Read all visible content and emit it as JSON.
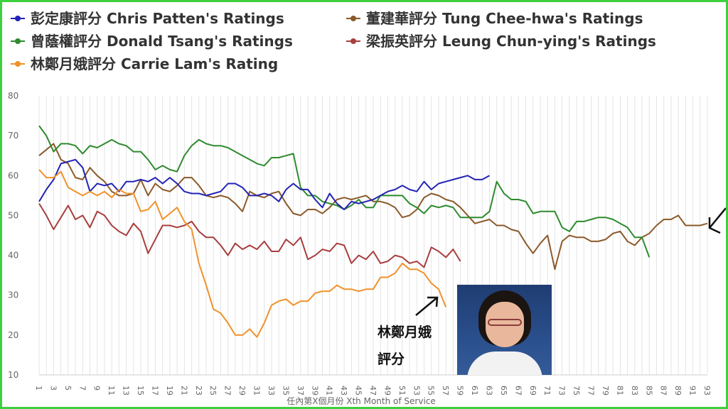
{
  "chart_data": {
    "type": "line",
    "title": "",
    "xlabel": "任內第X個月份 Xth Month of Service",
    "ylabel": "",
    "ylim": [
      10,
      80
    ],
    "yticks": [
      10,
      20,
      30,
      40,
      50,
      60,
      70,
      80
    ],
    "xlim": [
      1,
      93
    ],
    "xticks": [
      "1",
      "3",
      "5",
      "7",
      "9",
      "11",
      "13",
      "15",
      "17",
      "19",
      "21",
      "23",
      "25",
      "27",
      "29",
      "31",
      "33",
      "35",
      "37",
      "39",
      "41",
      "43",
      "45",
      "47",
      "49",
      "51",
      "53",
      "55",
      "57",
      "59",
      "61",
      "63",
      "65",
      "67",
      "69",
      "71",
      "73",
      "75",
      "77",
      "79",
      "81",
      "83",
      "85",
      "87",
      "89",
      "91",
      "93"
    ],
    "grid": "vertical",
    "legend": "top",
    "series": [
      {
        "name": "彭定康評分 Chris Patten's Ratings",
        "color": "#2323b5",
        "x": [
          1,
          2,
          3,
          4,
          5,
          6,
          7,
          8,
          9,
          10,
          11,
          12,
          13,
          14,
          15,
          16,
          17,
          18,
          19,
          20,
          21,
          22,
          23,
          24,
          25,
          26,
          27,
          28,
          29,
          30,
          31,
          32,
          33,
          34,
          35,
          36,
          37,
          38,
          39,
          40,
          41,
          42,
          43,
          44,
          45,
          46,
          47,
          48,
          49,
          50,
          51,
          52,
          53,
          54,
          55,
          56,
          57,
          58,
          59,
          60,
          61,
          62,
          63
        ],
        "values": [
          53.5,
          56.5,
          59,
          63,
          63.5,
          64,
          62,
          56,
          58,
          57.5,
          58,
          56,
          58.5,
          58.5,
          59,
          58.5,
          59.5,
          58,
          59.5,
          58,
          56,
          55.5,
          55.5,
          55,
          55.5,
          56,
          58,
          58,
          57,
          55,
          55,
          55.5,
          55,
          53.5,
          56.5,
          58,
          56.5,
          56.5,
          54,
          52,
          55.5,
          53,
          51.5,
          53.5,
          53,
          53.5,
          54,
          55,
          56,
          56.5,
          57.5,
          56.5,
          56,
          58.5,
          56.5,
          58,
          58.5,
          59,
          59.5,
          60,
          59,
          59,
          60
        ]
      },
      {
        "name": "董建華評分 Tung Chee-hwa's Ratings",
        "color": "#8b5a2b",
        "x": [
          1,
          2,
          3,
          4,
          5,
          6,
          7,
          8,
          9,
          10,
          11,
          12,
          13,
          14,
          15,
          16,
          17,
          18,
          19,
          20,
          21,
          22,
          23,
          24,
          25,
          26,
          27,
          28,
          29,
          30,
          31,
          32,
          33,
          34,
          35,
          36,
          37,
          38,
          39,
          40,
          41,
          42,
          43,
          44,
          45,
          46,
          47,
          48,
          49,
          50,
          51,
          52,
          53,
          54,
          55,
          56,
          57,
          58,
          59,
          60,
          61,
          62,
          63,
          64,
          65,
          66,
          67,
          68,
          69,
          70,
          71,
          72,
          73,
          74,
          75,
          76,
          77,
          78,
          79,
          80,
          81,
          82,
          83,
          84,
          85,
          86,
          87,
          88,
          89,
          90,
          91,
          92,
          93
        ],
        "values": [
          65,
          66.5,
          68,
          64,
          63,
          59.5,
          59,
          62,
          60,
          58.5,
          56,
          55,
          55,
          55.5,
          59,
          55,
          58,
          56.5,
          56,
          57.5,
          59.5,
          59.5,
          57.5,
          55,
          54.5,
          55,
          54.5,
          53,
          51,
          56,
          55,
          54.5,
          55.5,
          56,
          53,
          50.5,
          50,
          51.5,
          51.5,
          50.5,
          52,
          54,
          54.5,
          54,
          54.5,
          55,
          53.5,
          53.5,
          53,
          52,
          49.5,
          50,
          51.5,
          54.5,
          55.5,
          55,
          54,
          53.5,
          52,
          50,
          48,
          48.5,
          49,
          47.5,
          47.5,
          46.5,
          46,
          43,
          40.5,
          43,
          45,
          36.5,
          43.5,
          45,
          44.5,
          44.5,
          43.5,
          43.5,
          44,
          45.5,
          46,
          43.5,
          42.5,
          44.5,
          45.5,
          47.5,
          49,
          49,
          50,
          47.5,
          47.5,
          47.5,
          48
        ]
      },
      {
        "name": "曾蔭權評分 Donald Tsang's Ratings",
        "color": "#2e8b2e",
        "x": [
          1,
          2,
          3,
          4,
          5,
          6,
          7,
          8,
          9,
          10,
          11,
          12,
          13,
          14,
          15,
          16,
          17,
          18,
          19,
          20,
          21,
          22,
          23,
          24,
          25,
          26,
          27,
          28,
          29,
          30,
          31,
          32,
          33,
          34,
          35,
          36,
          37,
          38,
          39,
          40,
          41,
          42,
          43,
          44,
          45,
          46,
          47,
          48,
          49,
          50,
          51,
          52,
          53,
          54,
          55,
          56,
          57,
          58,
          59,
          60,
          61,
          62,
          63,
          64,
          65,
          66,
          67,
          68,
          69,
          70,
          71,
          72,
          73,
          74,
          75,
          76,
          77,
          78,
          79,
          80,
          81,
          82,
          83,
          84,
          85
        ],
        "values": [
          72.5,
          70,
          66,
          68,
          68,
          67.5,
          65.5,
          67.5,
          67,
          68,
          69,
          68,
          67.5,
          66,
          66,
          64,
          61.5,
          62.5,
          61.5,
          61,
          65,
          67.5,
          69,
          68,
          67.5,
          67.5,
          67,
          66,
          65,
          64,
          63,
          62.5,
          64.5,
          64.5,
          65,
          65.5,
          57,
          55,
          55,
          53.5,
          53,
          52.5,
          51.5,
          52.5,
          54,
          52,
          52,
          55,
          55,
          55,
          55,
          53,
          52,
          50.5,
          52.5,
          52,
          52.5,
          52,
          49.5,
          49.5,
          49.5,
          49.5,
          51,
          58.5,
          55.5,
          54,
          54,
          53.5,
          50.5,
          51,
          51,
          51,
          47,
          46,
          48.5,
          48.5,
          49,
          49.5,
          49.5,
          49,
          48,
          47,
          44.5,
          44.5,
          39.5
        ]
      },
      {
        "name": "梁振英評分 Leung Chun-ying's Ratings",
        "color": "#a83e3e",
        "x": [
          1,
          2,
          3,
          4,
          5,
          6,
          7,
          8,
          9,
          10,
          11,
          12,
          13,
          14,
          15,
          16,
          17,
          18,
          19,
          20,
          21,
          22,
          23,
          24,
          25,
          26,
          27,
          28,
          29,
          30,
          31,
          32,
          33,
          34,
          35,
          36,
          37,
          38,
          39,
          40,
          41,
          42,
          43,
          44,
          45,
          46,
          47,
          48,
          49,
          50,
          51,
          52,
          53,
          54,
          55,
          56,
          57,
          58,
          59
        ],
        "values": [
          53,
          50,
          46.5,
          49.5,
          52.5,
          49,
          50,
          47,
          51,
          50,
          47.5,
          46,
          45,
          48,
          46,
          40.5,
          44,
          47.5,
          47.5,
          47,
          47.5,
          48.5,
          46,
          44.5,
          44.5,
          42.5,
          40,
          43,
          41.5,
          42.5,
          41.5,
          43.5,
          41,
          41,
          44,
          42.5,
          44.5,
          39,
          40,
          41.5,
          41,
          43,
          42.5,
          38,
          40,
          39,
          41,
          38,
          38.5,
          40,
          39.5,
          38,
          38.5,
          37,
          42,
          41,
          39.5,
          41.5,
          38.5
        ]
      },
      {
        "name": "林鄭月娥評分 Carrie Lam's Rating",
        "color": "#f0922b",
        "x": [
          1,
          2,
          3,
          4,
          5,
          6,
          7,
          8,
          9,
          10,
          11,
          12,
          13,
          14,
          15,
          16,
          17,
          18,
          19,
          20,
          21,
          22,
          23,
          24,
          25,
          26,
          27,
          28,
          29,
          30,
          31,
          32,
          33,
          34,
          35,
          36,
          37,
          38,
          39,
          40,
          41,
          42,
          43,
          44,
          45,
          46,
          47,
          48,
          49,
          50,
          51,
          52,
          53,
          54,
          55,
          56,
          57
        ],
        "values": [
          61.5,
          59.5,
          59.5,
          61,
          57,
          56,
          55,
          56,
          55,
          56,
          54.5,
          56.5,
          55.5,
          55.5,
          51,
          51.5,
          53.5,
          49,
          50.5,
          52,
          48.5,
          46.5,
          38,
          32.5,
          26.5,
          25.5,
          23,
          20,
          20,
          21.5,
          19.5,
          23,
          27.5,
          28.5,
          29,
          27.5,
          28.5,
          28.5,
          30.5,
          31,
          31,
          32.5,
          31.5,
          31.5,
          31,
          31.5,
          31.5,
          34.5,
          34.5,
          35.5,
          38,
          36.5,
          36.5,
          35.5,
          33,
          31.5,
          27
        ]
      }
    ],
    "annotations": [
      "林鄭月娥",
      "評分"
    ]
  }
}
